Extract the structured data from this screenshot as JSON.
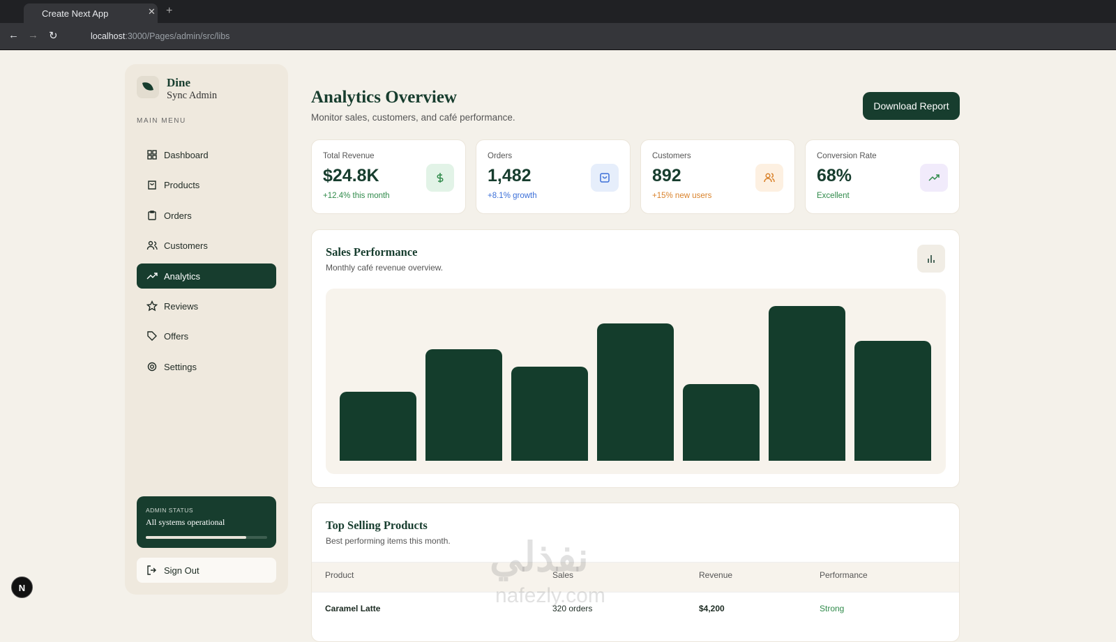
{
  "browser": {
    "tab_title": "Create Next App",
    "url_host": "localhost",
    "url_path": ":3000/Pages/admin/src/libs"
  },
  "sidebar": {
    "brand": "Dine",
    "brand_sub": "Sync Admin",
    "menu_label": "MAIN MENU",
    "menu": [
      "Dashboard",
      "Products",
      "Orders",
      "Customers",
      "Analytics",
      "Reviews",
      "Offers",
      "Settings"
    ],
    "active_index": 4,
    "status": {
      "label": "ADMIN STATUS",
      "text": "All systems operational"
    },
    "sign_out": "Sign Out"
  },
  "header": {
    "title": "Analytics Overview",
    "subtitle": "Monitor sales, customers, and café performance.",
    "button": "Download Report"
  },
  "stats": [
    {
      "label": "Total Revenue",
      "value": "$24.8K",
      "note": "+12.4% this month",
      "color": "#2f8a4a",
      "icon_bg": "#e2f3e7"
    },
    {
      "label": "Orders",
      "value": "1,482",
      "note": "+8.1% growth",
      "color": "#3b6fd8",
      "icon_bg": "#e6eefb"
    },
    {
      "label": "Customers",
      "value": "892",
      "note": "+15% new users",
      "color": "#d9822b",
      "icon_bg": "#fdf0e1"
    },
    {
      "label": "Conversion Rate",
      "value": "68%",
      "note": "Excellent",
      "color": "#2f8a4a",
      "icon_bg": "#f1ebfb"
    }
  ],
  "chart_data": {
    "type": "bar",
    "title": "Sales Performance",
    "subtitle": "Monthly café revenue overview.",
    "values": [
      89,
      144,
      122,
      178,
      99,
      200,
      155
    ],
    "ylim": [
      0,
      240
    ],
    "color": "#143d2c"
  },
  "table": {
    "title": "Top Selling Products",
    "subtitle": "Best performing items this month.",
    "columns": [
      "Product",
      "Sales",
      "Revenue",
      "Performance"
    ],
    "rows": [
      [
        "Caramel Latte",
        "320 orders",
        "$4,200",
        "Strong"
      ]
    ]
  },
  "watermark": {
    "arabic": "نفذلي",
    "latin": "nafezly.com"
  }
}
